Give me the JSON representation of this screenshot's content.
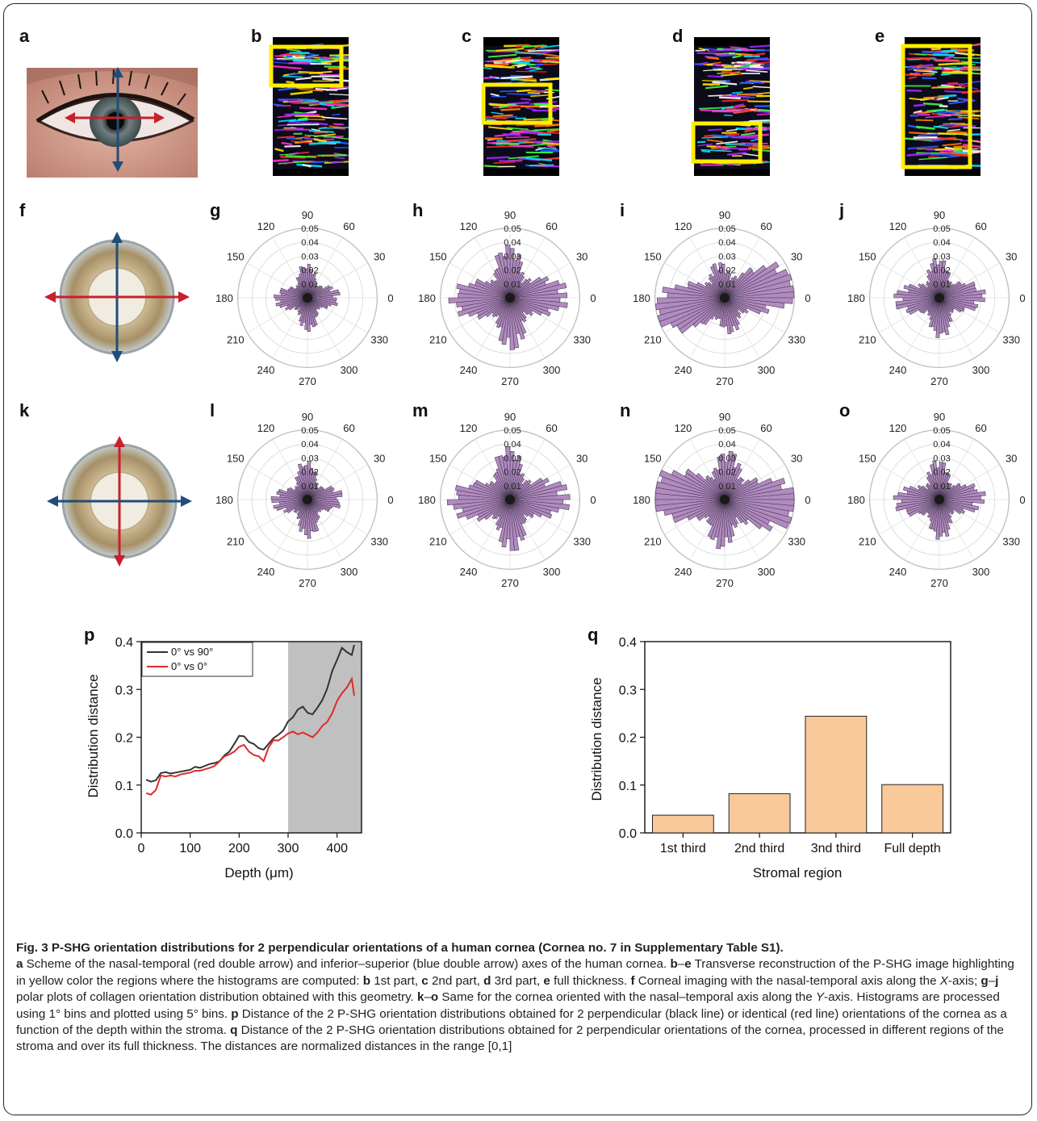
{
  "panels": {
    "a": "a",
    "b": "b",
    "c": "c",
    "d": "d",
    "e": "e",
    "f": "f",
    "g": "g",
    "h": "h",
    "i": "i",
    "j": "j",
    "k": "k",
    "l": "l",
    "m": "m",
    "n": "n",
    "o": "o",
    "p": "p",
    "q": "q"
  },
  "colors": {
    "nasal_temporal_axis": "#c8202c",
    "inferior_superior_axis": "#1f4e79",
    "highlight_box": "#ffee00",
    "rose_fill": "#b18bc0",
    "rose_stroke": "#4a3a55",
    "bar_fill": "#f9c99a",
    "shaded_region": "#c0c0c0"
  },
  "polar": {
    "angle_labels": [
      "0",
      "30",
      "60",
      "90",
      "120",
      "150",
      "180",
      "210",
      "240",
      "270",
      "300",
      "330"
    ],
    "radial_labels": [
      "0.01",
      "0.02",
      "0.03",
      "0.04",
      "0.05"
    ],
    "radial_max": 0.05,
    "plots": [
      {
        "panel": "g",
        "horizontal": 0.018,
        "vertical": 0.018,
        "skew": 0
      },
      {
        "panel": "h",
        "horizontal": 0.035,
        "vertical": 0.03,
        "skew": 0
      },
      {
        "panel": "i",
        "horizontal": 0.046,
        "vertical": 0.02,
        "skew": -10
      },
      {
        "panel": "j",
        "horizontal": 0.026,
        "vertical": 0.022,
        "skew": 0
      },
      {
        "panel": "l",
        "horizontal": 0.02,
        "vertical": 0.021,
        "skew": 0
      },
      {
        "panel": "m",
        "horizontal": 0.036,
        "vertical": 0.03,
        "skew": 0
      },
      {
        "panel": "n",
        "horizontal": 0.05,
        "vertical": 0.028,
        "skew": 8
      },
      {
        "panel": "o",
        "horizontal": 0.026,
        "vertical": 0.022,
        "skew": 0
      }
    ]
  },
  "chart_data": [
    {
      "type": "line",
      "panel": "p",
      "xlabel": "Depth (μm)",
      "ylabel": "Distribution distance",
      "xlim": [
        0,
        450
      ],
      "ylim": [
        0,
        0.4
      ],
      "xticks": [
        "0",
        "100",
        "200",
        "300",
        "400"
      ],
      "yticks": [
        "0.0",
        "0.1",
        "0.2",
        "0.3",
        "0.4"
      ],
      "shaded_x_range": [
        300,
        450
      ],
      "legend_position": "top-left",
      "series": [
        {
          "name": "0° vs 90°",
          "color": "#333333",
          "x": [
            10,
            20,
            30,
            40,
            50,
            60,
            70,
            80,
            90,
            100,
            110,
            120,
            130,
            140,
            150,
            160,
            170,
            180,
            190,
            200,
            210,
            220,
            230,
            240,
            250,
            260,
            270,
            280,
            290,
            300,
            310,
            320,
            330,
            340,
            350,
            360,
            370,
            380,
            390,
            400,
            410,
            420,
            430,
            435
          ],
          "y": [
            0.111,
            0.107,
            0.11,
            0.125,
            0.127,
            0.124,
            0.126,
            0.128,
            0.13,
            0.132,
            0.138,
            0.136,
            0.14,
            0.144,
            0.146,
            0.15,
            0.162,
            0.17,
            0.186,
            0.203,
            0.202,
            0.19,
            0.186,
            0.177,
            0.174,
            0.186,
            0.198,
            0.205,
            0.214,
            0.233,
            0.242,
            0.258,
            0.264,
            0.251,
            0.248,
            0.262,
            0.278,
            0.302,
            0.338,
            0.362,
            0.387,
            0.378,
            0.372,
            0.393
          ]
        },
        {
          "name": "0° vs 0°",
          "color": "#e02a2a",
          "x": [
            10,
            20,
            30,
            40,
            50,
            60,
            70,
            80,
            90,
            100,
            110,
            120,
            130,
            140,
            150,
            160,
            170,
            180,
            190,
            200,
            210,
            220,
            230,
            240,
            250,
            260,
            270,
            280,
            290,
            300,
            310,
            320,
            330,
            340,
            350,
            360,
            370,
            380,
            390,
            400,
            410,
            420,
            430,
            435
          ],
          "y": [
            0.083,
            0.08,
            0.09,
            0.12,
            0.118,
            0.12,
            0.118,
            0.122,
            0.124,
            0.126,
            0.13,
            0.13,
            0.133,
            0.136,
            0.14,
            0.15,
            0.16,
            0.164,
            0.17,
            0.18,
            0.184,
            0.17,
            0.163,
            0.16,
            0.15,
            0.178,
            0.194,
            0.193,
            0.2,
            0.208,
            0.212,
            0.206,
            0.21,
            0.205,
            0.2,
            0.21,
            0.224,
            0.232,
            0.25,
            0.276,
            0.292,
            0.304,
            0.322,
            0.287
          ]
        }
      ]
    },
    {
      "type": "bar",
      "panel": "q",
      "xlabel": "Stromal region",
      "ylabel": "Distribution distance",
      "ylim": [
        0,
        0.4
      ],
      "yticks": [
        "0.0",
        "0.1",
        "0.2",
        "0.3",
        "0.4"
      ],
      "categories": [
        "1st third",
        "2nd third",
        "3nd third",
        "Full depth"
      ],
      "values": [
        0.037,
        0.082,
        0.244,
        0.101
      ]
    }
  ],
  "caption": {
    "title": "Fig. 3 P-SHG orientation distributions for 2 perpendicular orientations of a human cornea (Cornea no. 7 in Supplementary Table S1).",
    "segments": [
      {
        "b": "a"
      },
      {
        "t": " Scheme of the nasal-temporal (red double arrow) and inferior–superior (blue double arrow) axes of the human cornea. "
      },
      {
        "b": "b"
      },
      {
        "t": "–"
      },
      {
        "b": "e"
      },
      {
        "t": " Transverse reconstruction of the P-SHG image highlighting in yellow color the regions where the histograms are computed: "
      },
      {
        "b": "b"
      },
      {
        "t": " 1st part, "
      },
      {
        "b": "c"
      },
      {
        "t": " 2nd part, "
      },
      {
        "b": "d"
      },
      {
        "t": " 3rd part, "
      },
      {
        "b": "e"
      },
      {
        "t": " full thickness. "
      },
      {
        "b": "f"
      },
      {
        "t": " Corneal imaging with the nasal-temporal axis along the "
      },
      {
        "i": "X"
      },
      {
        "t": "-axis; "
      },
      {
        "b": "g"
      },
      {
        "t": "–"
      },
      {
        "b": "j"
      },
      {
        "t": " polar plots of collagen orientation distribution obtained with this geometry. "
      },
      {
        "b": "k"
      },
      {
        "t": "–"
      },
      {
        "b": "o"
      },
      {
        "t": " Same for the cornea oriented with the nasal–temporal axis along the "
      },
      {
        "i": "Y"
      },
      {
        "t": "-axis. Histograms are processed using 1° bins and plotted using 5° bins. "
      },
      {
        "b": "p"
      },
      {
        "t": " Distance of the 2 P-SHG orientation distributions obtained for 2 perpendicular (black line) or identical (red line) orientations of the cornea as a function of the depth within the stroma. "
      },
      {
        "b": "q"
      },
      {
        "t": " Distance of the 2 P-SHG orientation distributions obtained for 2 perpendicular orientations of the cornea, processed in different regions of the stroma and over its full thickness. The distances are normalized distances in the range [0,1]"
      }
    ]
  }
}
